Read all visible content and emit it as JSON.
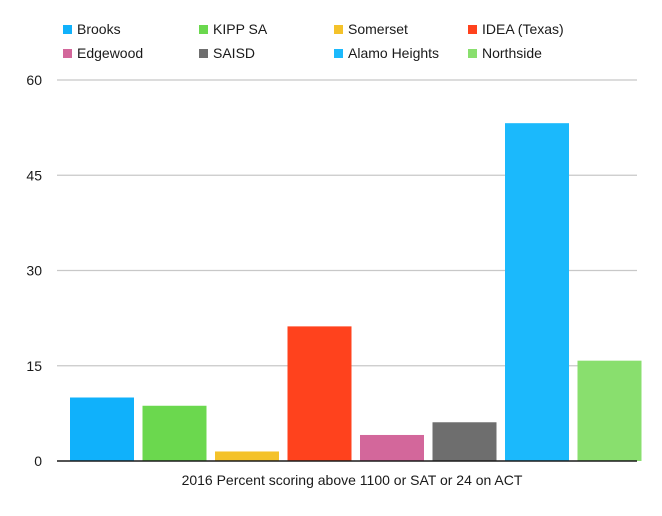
{
  "chart_data": {
    "type": "bar",
    "categories": [
      "Brooks",
      "KIPP SA",
      "Somerset",
      "IDEA (Texas)",
      "Edgewood",
      "SAISD",
      "Alamo Heights",
      "Northside"
    ],
    "values": [
      10,
      8.7,
      1.5,
      21.2,
      4.1,
      6.1,
      53.2,
      15.8
    ],
    "colors": [
      "#10b1fb",
      "#6bd84e",
      "#f4c22a",
      "#ff421d",
      "#d3679b",
      "#6e6e6e",
      "#1bb9fc",
      "#89df6e"
    ],
    "xlabel": "2016 Percent scoring above 1100 or SAT or 24 on ACT",
    "ylabel": "",
    "ylim": [
      0,
      60
    ],
    "yticks": [
      "0",
      "15",
      "30",
      "45",
      "60"
    ],
    "grid": true,
    "legend_position": "top"
  }
}
